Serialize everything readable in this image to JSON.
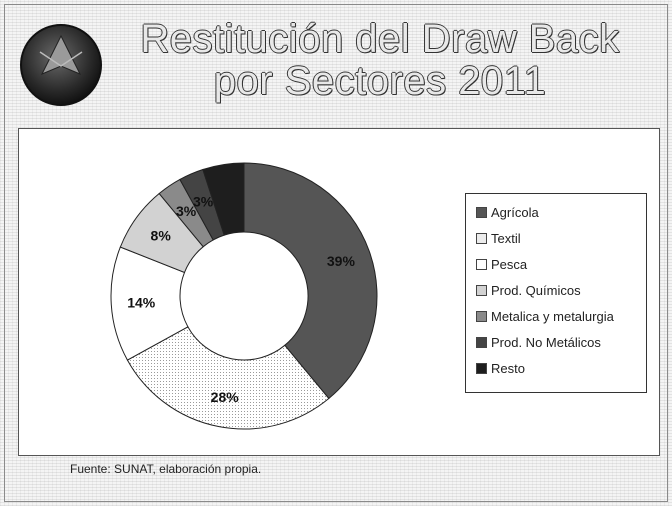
{
  "header": {
    "title_line1": "Restitución del Draw Back",
    "title_line2": "por Sectores 2011"
  },
  "chart_data": {
    "type": "pie",
    "variant": "donut",
    "title": "Restitución del Draw Back por Sectores 2011",
    "legend_position": "right",
    "categories": [
      "Agrícola",
      "Textil",
      "Pesca",
      "Prod. Químicos",
      "Metalica y metalurgia",
      "Prod. No Metálicos",
      "Resto"
    ],
    "values": [
      39,
      28,
      14,
      8,
      3,
      3,
      5
    ],
    "data_labels": [
      "39%",
      "28%",
      "14%",
      "8%",
      "3%",
      "3%",
      ""
    ],
    "colors": [
      "#555555",
      "#ececec",
      "#ffffff",
      "#d2d2d2",
      "#8a8a8a",
      "#444444",
      "#1e1e1e"
    ]
  },
  "footer": {
    "source": "Fuente: SUNAT, elaboración propia."
  }
}
